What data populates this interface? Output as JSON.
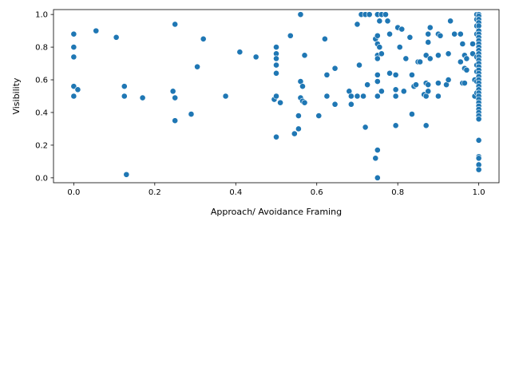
{
  "chart_data": {
    "type": "scatter",
    "xlabel": "Approach/ Avoidance Framing",
    "ylabel": "Visibility",
    "xlim": [
      -0.05,
      1.05
    ],
    "ylim": [
      -0.03,
      1.03
    ],
    "xticks": [
      "0.0",
      "0.2",
      "0.4",
      "0.6",
      "0.8",
      "1.0"
    ],
    "yticks": [
      "0.0",
      "0.2",
      "0.4",
      "0.6",
      "0.8",
      "1.0"
    ],
    "grid": false,
    "color": "#1f77b4",
    "points": [
      [
        0.0,
        0.88
      ],
      [
        0.0,
        0.8
      ],
      [
        0.0,
        0.74
      ],
      [
        0.0,
        0.56
      ],
      [
        0.0,
        0.5
      ],
      [
        0.01,
        0.54
      ],
      [
        0.055,
        0.9
      ],
      [
        0.105,
        0.86
      ],
      [
        0.125,
        0.56
      ],
      [
        0.125,
        0.5
      ],
      [
        0.13,
        0.02
      ],
      [
        0.17,
        0.49
      ],
      [
        0.245,
        0.53
      ],
      [
        0.25,
        0.94
      ],
      [
        0.25,
        0.49
      ],
      [
        0.25,
        0.35
      ],
      [
        0.29,
        0.39
      ],
      [
        0.305,
        0.68
      ],
      [
        0.32,
        0.85
      ],
      [
        0.375,
        0.5
      ],
      [
        0.41,
        0.77
      ],
      [
        0.45,
        0.74
      ],
      [
        0.495,
        0.48
      ],
      [
        0.5,
        0.8
      ],
      [
        0.5,
        0.76
      ],
      [
        0.5,
        0.73
      ],
      [
        0.5,
        0.69
      ],
      [
        0.5,
        0.64
      ],
      [
        0.5,
        0.5
      ],
      [
        0.5,
        0.25
      ],
      [
        0.51,
        0.46
      ],
      [
        0.535,
        0.87
      ],
      [
        0.545,
        0.27
      ],
      [
        0.555,
        0.38
      ],
      [
        0.555,
        0.3
      ],
      [
        0.56,
        1.0
      ],
      [
        0.56,
        0.59
      ],
      [
        0.56,
        0.49
      ],
      [
        0.565,
        0.56
      ],
      [
        0.565,
        0.47
      ],
      [
        0.57,
        0.75
      ],
      [
        0.57,
        0.46
      ],
      [
        0.605,
        0.38
      ],
      [
        0.62,
        0.85
      ],
      [
        0.625,
        0.63
      ],
      [
        0.625,
        0.5
      ],
      [
        0.645,
        0.67
      ],
      [
        0.645,
        0.45
      ],
      [
        0.68,
        0.53
      ],
      [
        0.685,
        0.5
      ],
      [
        0.685,
        0.45
      ],
      [
        0.7,
        0.94
      ],
      [
        0.7,
        0.5
      ],
      [
        0.705,
        0.69
      ],
      [
        0.71,
        1.0
      ],
      [
        0.715,
        0.5
      ],
      [
        0.72,
        1.0
      ],
      [
        0.72,
        0.31
      ],
      [
        0.725,
        0.57
      ],
      [
        0.73,
        1.0
      ],
      [
        0.745,
        0.85
      ],
      [
        0.745,
        0.12
      ],
      [
        0.75,
        1.0
      ],
      [
        0.75,
        0.87
      ],
      [
        0.75,
        0.82
      ],
      [
        0.75,
        0.75
      ],
      [
        0.75,
        0.73
      ],
      [
        0.75,
        0.63
      ],
      [
        0.75,
        0.59
      ],
      [
        0.75,
        0.5
      ],
      [
        0.75,
        0.17
      ],
      [
        0.75,
        0.0
      ],
      [
        0.755,
        0.96
      ],
      [
        0.755,
        0.8
      ],
      [
        0.76,
        1.0
      ],
      [
        0.76,
        0.76
      ],
      [
        0.76,
        0.53
      ],
      [
        0.77,
        1.0
      ],
      [
        0.775,
        0.96
      ],
      [
        0.78,
        0.88
      ],
      [
        0.78,
        0.64
      ],
      [
        0.795,
        0.63
      ],
      [
        0.795,
        0.54
      ],
      [
        0.795,
        0.5
      ],
      [
        0.795,
        0.32
      ],
      [
        0.8,
        0.92
      ],
      [
        0.805,
        0.8
      ],
      [
        0.81,
        0.91
      ],
      [
        0.815,
        0.53
      ],
      [
        0.82,
        0.73
      ],
      [
        0.83,
        0.86
      ],
      [
        0.835,
        0.63
      ],
      [
        0.835,
        0.39
      ],
      [
        0.84,
        0.56
      ],
      [
        0.845,
        0.57
      ],
      [
        0.85,
        0.71
      ],
      [
        0.855,
        0.71
      ],
      [
        0.865,
        0.51
      ],
      [
        0.87,
        0.75
      ],
      [
        0.87,
        0.58
      ],
      [
        0.87,
        0.5
      ],
      [
        0.87,
        0.32
      ],
      [
        0.875,
        0.88
      ],
      [
        0.875,
        0.83
      ],
      [
        0.875,
        0.57
      ],
      [
        0.875,
        0.53
      ],
      [
        0.88,
        0.92
      ],
      [
        0.88,
        0.73
      ],
      [
        0.9,
        0.88
      ],
      [
        0.9,
        0.75
      ],
      [
        0.9,
        0.58
      ],
      [
        0.9,
        0.5
      ],
      [
        0.905,
        0.87
      ],
      [
        0.92,
        0.57
      ],
      [
        0.925,
        0.76
      ],
      [
        0.925,
        0.6
      ],
      [
        0.93,
        0.96
      ],
      [
        0.94,
        0.88
      ],
      [
        0.955,
        0.88
      ],
      [
        0.955,
        0.71
      ],
      [
        0.96,
        0.82
      ],
      [
        0.96,
        0.58
      ],
      [
        0.965,
        0.75
      ],
      [
        0.965,
        0.67
      ],
      [
        0.965,
        0.58
      ],
      [
        0.97,
        0.73
      ],
      [
        0.97,
        0.66
      ],
      [
        0.985,
        0.82
      ],
      [
        0.985,
        0.76
      ],
      [
        0.99,
        0.6
      ],
      [
        0.99,
        0.5
      ],
      [
        0.995,
        1.0
      ],
      [
        0.995,
        0.97
      ],
      [
        0.995,
        0.93
      ],
      [
        0.995,
        0.88
      ],
      [
        0.995,
        0.74
      ],
      [
        0.995,
        0.69
      ],
      [
        0.995,
        0.65
      ],
      [
        0.995,
        0.59
      ],
      [
        0.995,
        0.52
      ],
      [
        1.0,
        1.0
      ],
      [
        1.0,
        0.99
      ],
      [
        1.0,
        0.97
      ],
      [
        1.0,
        0.95
      ],
      [
        1.0,
        0.93
      ],
      [
        1.0,
        0.9
      ],
      [
        1.0,
        0.88
      ],
      [
        1.0,
        0.86
      ],
      [
        1.0,
        0.84
      ],
      [
        1.0,
        0.82
      ],
      [
        1.0,
        0.8
      ],
      [
        1.0,
        0.78
      ],
      [
        1.0,
        0.76
      ],
      [
        1.0,
        0.74
      ],
      [
        1.0,
        0.72
      ],
      [
        1.0,
        0.7
      ],
      [
        1.0,
        0.68
      ],
      [
        1.0,
        0.66
      ],
      [
        1.0,
        0.64
      ],
      [
        1.0,
        0.62
      ],
      [
        1.0,
        0.6
      ],
      [
        1.0,
        0.58
      ],
      [
        1.0,
        0.56
      ],
      [
        1.0,
        0.54
      ],
      [
        1.0,
        0.52
      ],
      [
        1.0,
        0.5
      ],
      [
        1.0,
        0.48
      ],
      [
        1.0,
        0.46
      ],
      [
        1.0,
        0.44
      ],
      [
        1.0,
        0.42
      ],
      [
        1.0,
        0.4
      ],
      [
        1.0,
        0.38
      ],
      [
        1.0,
        0.36
      ],
      [
        1.0,
        0.23
      ],
      [
        1.0,
        0.13
      ],
      [
        1.0,
        0.12
      ],
      [
        1.0,
        0.08
      ],
      [
        1.0,
        0.05
      ]
    ]
  }
}
